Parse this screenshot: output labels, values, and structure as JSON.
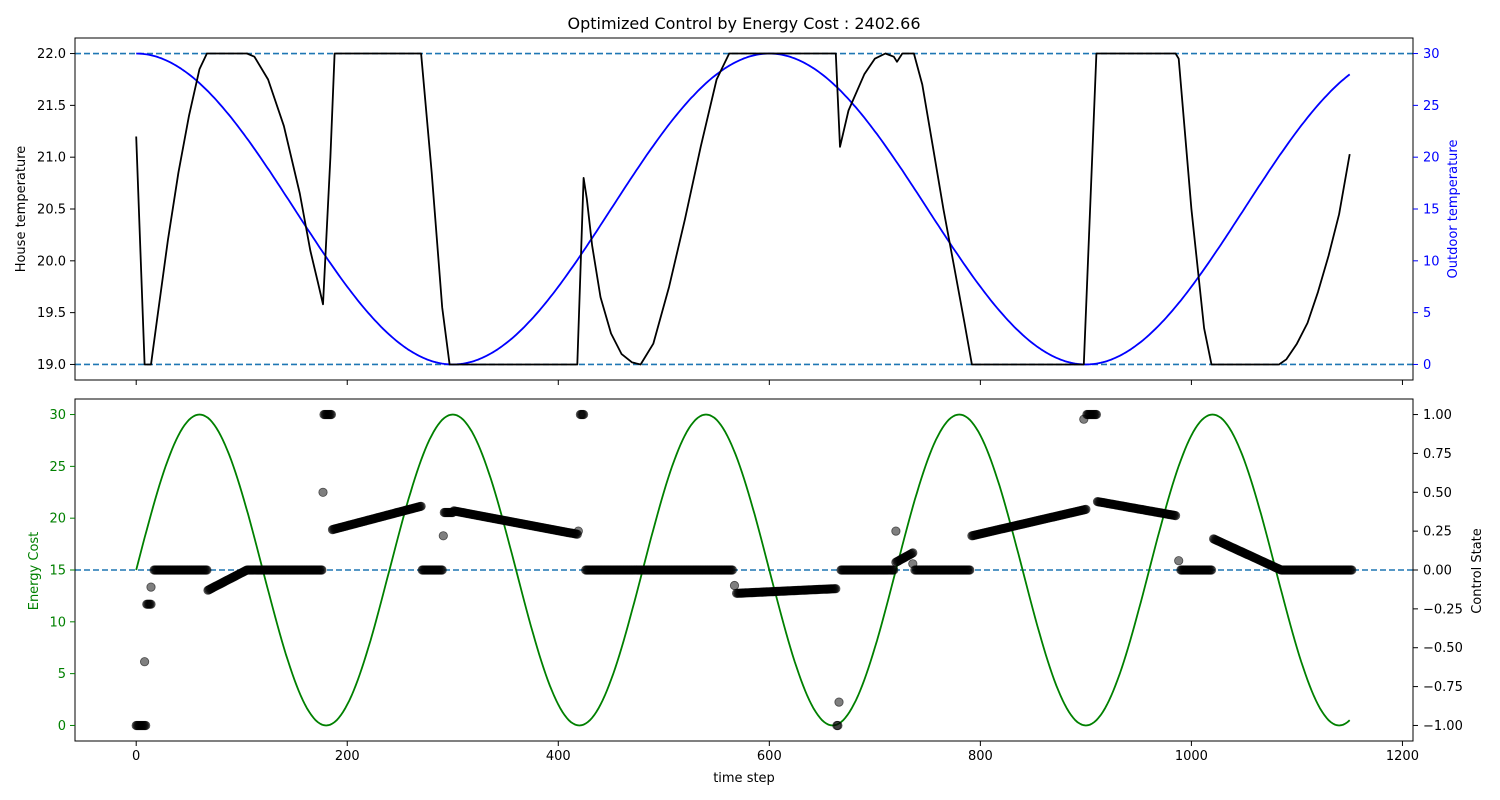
{
  "title": "Optimized Control by Energy Cost : 2402.66",
  "chart_data": [
    {
      "type": "line",
      "panel": "top",
      "ylabel_left": "House temperature",
      "ylabel_right": "Outdoor temperature",
      "xlim": [
        -58,
        1210
      ],
      "ylim_left": [
        18.85,
        22.15
      ],
      "ylim_right": [
        -1.5,
        31.5
      ],
      "left_ticks": [
        "19.0",
        "19.5",
        "20.0",
        "20.5",
        "21.0",
        "21.5",
        "22.0"
      ],
      "right_ticks": [
        "0",
        "5",
        "10",
        "15",
        "20",
        "25",
        "30"
      ],
      "reference_lines_left": [
        19.0,
        22.0
      ],
      "series": [
        {
          "axis": "left",
          "color": "#000000",
          "x": [
            0,
            8,
            14,
            20,
            30,
            40,
            50,
            60,
            67,
            75,
            90,
            105,
            112,
            125,
            140,
            155,
            165,
            172,
            177,
            184,
            188,
            200,
            215,
            230,
            245,
            260,
            270,
            280,
            290,
            297,
            320,
            350,
            380,
            410,
            418,
            424,
            427,
            432,
            440,
            450,
            460,
            470,
            478,
            490,
            505,
            520,
            535,
            550,
            562,
            567,
            575,
            600,
            625,
            650,
            663,
            667,
            675,
            690,
            700,
            710,
            718,
            721,
            726,
            732,
            737,
            745,
            755,
            765,
            775,
            785,
            792,
            800,
            830,
            860,
            890,
            898,
            904,
            910,
            930,
            960,
            985,
            988,
            1000,
            1012,
            1019,
            1030,
            1050,
            1070,
            1083,
            1090,
            1100,
            1110,
            1120,
            1130,
            1140,
            1150
          ],
          "values": [
            21.2,
            19.0,
            19.0,
            19.45,
            20.2,
            20.85,
            21.4,
            21.85,
            22.0,
            22.0,
            22.0,
            22.0,
            21.97,
            21.75,
            21.3,
            20.65,
            20.1,
            19.8,
            19.58,
            21.0,
            22.0,
            22.0,
            22.0,
            22.0,
            22.0,
            22.0,
            22.0,
            20.85,
            19.55,
            19.0,
            19.0,
            19.0,
            19.0,
            19.0,
            19.0,
            20.8,
            20.6,
            20.15,
            19.65,
            19.3,
            19.1,
            19.02,
            19.0,
            19.2,
            19.75,
            20.4,
            21.1,
            21.75,
            22.0,
            22.0,
            22.0,
            22.0,
            22.0,
            22.0,
            22.0,
            21.1,
            21.45,
            21.8,
            21.95,
            22.0,
            21.97,
            21.92,
            22.0,
            22.0,
            22.0,
            21.7,
            21.1,
            20.5,
            19.95,
            19.4,
            19.0,
            19.0,
            19.0,
            19.0,
            19.0,
            19.0,
            20.5,
            22.0,
            22.0,
            22.0,
            22.0,
            21.95,
            20.5,
            19.35,
            19.0,
            19.0,
            19.0,
            19.0,
            19.0,
            19.05,
            19.2,
            19.4,
            19.7,
            20.05,
            20.45,
            21.03
          ]
        },
        {
          "axis": "right",
          "color": "#0000ff",
          "function": "15 + 15*cos(2*pi*t/600), t = 0..1150",
          "x_range": [
            0,
            1150
          ],
          "period": 600,
          "mean": 15,
          "amplitude": 15
        }
      ]
    },
    {
      "type": "scatter",
      "panel": "bottom",
      "xlabel": "time step",
      "ylabel_left": "Energy Cost",
      "ylabel_right": "Control State",
      "xlim": [
        -58,
        1210
      ],
      "x_ticks": [
        "0",
        "200",
        "400",
        "600",
        "800",
        "1000",
        "1200"
      ],
      "ylim_left": [
        -1.5,
        31.5
      ],
      "ylim_right": [
        -1.1,
        1.1
      ],
      "left_ticks": [
        "0",
        "5",
        "10",
        "15",
        "20",
        "25",
        "30"
      ],
      "right_ticks": [
        "−1.00",
        "−0.75",
        "−0.50",
        "−0.25",
        "0.00",
        "0.25",
        "0.50",
        "0.75",
        "1.00"
      ],
      "reference_lines_right": [
        0.0
      ],
      "energy_cost": {
        "axis": "left",
        "color": "#008000",
        "function": "15 + 15*sin(2*pi*t/240), t = 0..1150",
        "x_range": [
          0,
          1150
        ],
        "period": 240,
        "mean": 15,
        "amplitude": 15
      },
      "control_state": {
        "axis": "right",
        "color": "#000000",
        "segments": [
          {
            "x": [
              0,
              9
            ],
            "y": [
              -1.0,
              -1.0
            ]
          },
          {
            "x": [
              10,
              14
            ],
            "y": [
              -0.22,
              -0.22
            ]
          },
          {
            "x": [
              17,
              67
            ],
            "y": [
              0.0,
              0.0
            ]
          },
          {
            "x": [
              68,
              105
            ],
            "y": [
              -0.13,
              0.0
            ]
          },
          {
            "x": [
              106,
              176
            ],
            "y": [
              0.0,
              0.0
            ]
          },
          {
            "x": [
              178,
              185
            ],
            "y": [
              1.0,
              1.0
            ]
          },
          {
            "x": [
              186,
              270
            ],
            "y": [
              0.26,
              0.41
            ]
          },
          {
            "x": [
              271,
              290
            ],
            "y": [
              0.0,
              0.0
            ]
          },
          {
            "x": [
              292,
              300
            ],
            "y": [
              0.37,
              0.37
            ]
          },
          {
            "x": [
              301,
              418
            ],
            "y": [
              0.38,
              0.23
            ]
          },
          {
            "x": [
              421,
              424
            ],
            "y": [
              1.0,
              1.0
            ]
          },
          {
            "x": [
              426,
              565
            ],
            "y": [
              0.0,
              0.0
            ]
          },
          {
            "x": [
              569,
              663
            ],
            "y": [
              -0.15,
              -0.12
            ]
          },
          {
            "x": [
              664,
              665
            ],
            "y": [
              -1.0,
              -1.0
            ]
          },
          {
            "x": [
              668,
              718
            ],
            "y": [
              0.0,
              0.0
            ]
          },
          {
            "x": [
              720,
              736
            ],
            "y": [
              0.05,
              0.11
            ]
          },
          {
            "x": [
              738,
              790
            ],
            "y": [
              0.0,
              0.0
            ]
          },
          {
            "x": [
              792,
              900
            ],
            "y": [
              0.22,
              0.39
            ]
          },
          {
            "x": [
              901,
              910
            ],
            "y": [
              1.0,
              1.0
            ]
          },
          {
            "x": [
              911,
              985
            ],
            "y": [
              0.44,
              0.35
            ]
          },
          {
            "x": [
              990,
              1019
            ],
            "y": [
              0.0,
              0.0
            ]
          },
          {
            "x": [
              1021,
              1085
            ],
            "y": [
              0.2,
              0.0
            ]
          },
          {
            "x": [
              1086,
              1152
            ],
            "y": [
              0.0,
              0.0
            ]
          }
        ],
        "isolated_points": [
          {
            "x": 8,
            "y": -0.59
          },
          {
            "x": 14,
            "y": -0.11
          },
          {
            "x": 177,
            "y": 0.5
          },
          {
            "x": 291,
            "y": 0.22
          },
          {
            "x": 419,
            "y": 0.25
          },
          {
            "x": 567,
            "y": -0.1
          },
          {
            "x": 666,
            "y": -0.85
          },
          {
            "x": 720,
            "y": 0.25
          },
          {
            "x": 736,
            "y": 0.04
          },
          {
            "x": 898,
            "y": 0.97
          },
          {
            "x": 988,
            "y": 0.06
          }
        ]
      }
    }
  ]
}
